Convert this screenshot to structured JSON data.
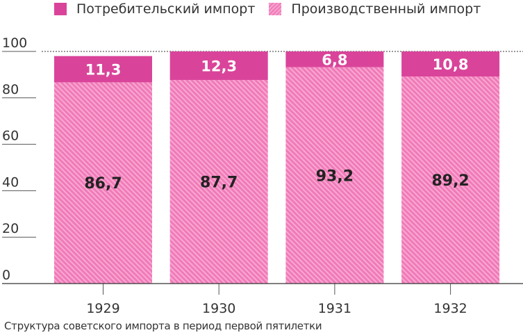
{
  "chart_data": {
    "type": "bar",
    "stacked": true,
    "categories": [
      "1929",
      "1930",
      "1931",
      "1932"
    ],
    "series": [
      {
        "name": "Производственный импорт",
        "values": [
          86.7,
          87.7,
          93.2,
          89.2
        ],
        "labels": [
          "86,7",
          "87,7",
          "93,2",
          "89,2"
        ],
        "color": "#f07ab8",
        "pattern": "diagonal-hatch"
      },
      {
        "name": "Потребительский импорт",
        "values": [
          11.3,
          12.3,
          6.8,
          10.8
        ],
        "labels": [
          "11,3",
          "12,3",
          "6,8",
          "10,8"
        ],
        "color": "#d9449a"
      }
    ],
    "ylim": [
      0,
      100
    ],
    "yticks": [
      0,
      20,
      40,
      60,
      80,
      100
    ],
    "legend_placement": "top",
    "reference_line": {
      "value": 100,
      "style": "dashed"
    },
    "caption": "Структура советского импорта в период первой пятилетки"
  }
}
